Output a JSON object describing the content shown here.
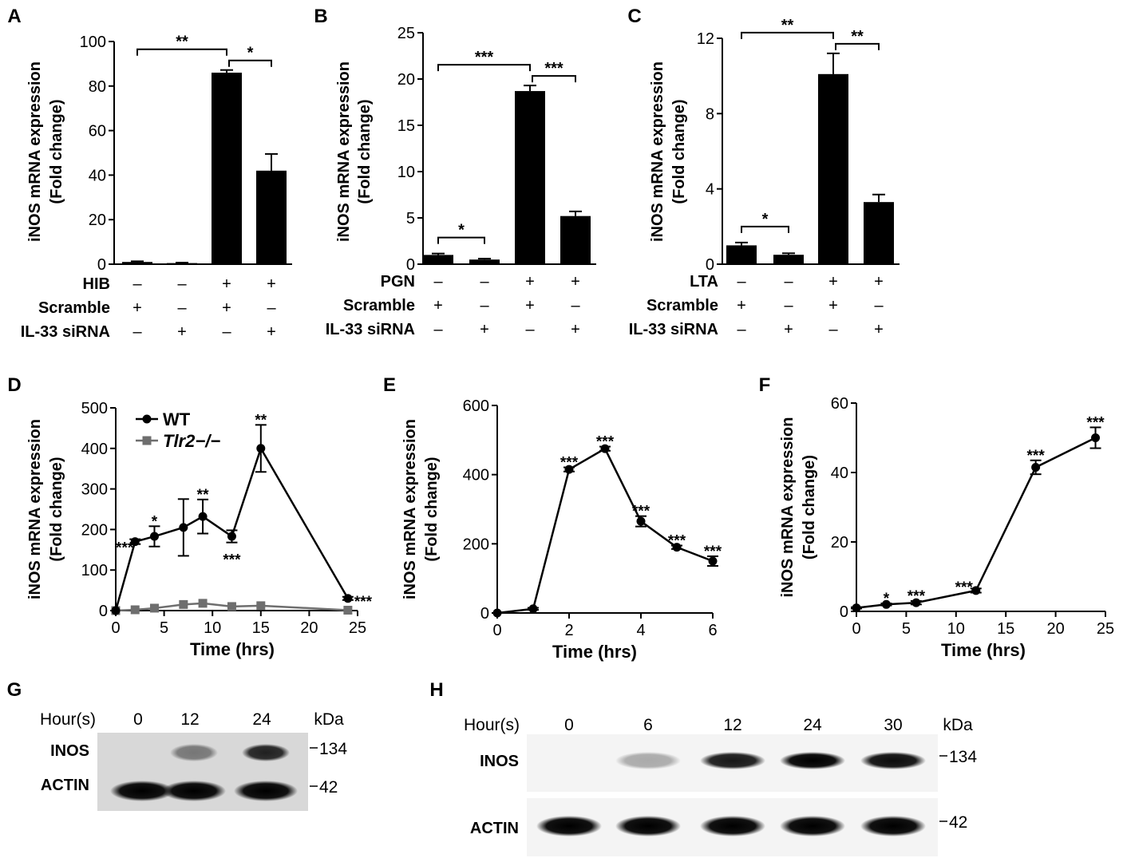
{
  "panel_letters": [
    "A",
    "B",
    "C",
    "D",
    "E",
    "F",
    "G",
    "H"
  ],
  "chart_data": [
    {
      "type": "bar",
      "panel": "A",
      "ylabel": [
        "iNOS mRNA expression",
        "(Fold change)"
      ],
      "ylim": [
        0,
        100
      ],
      "yticks": [
        0,
        20,
        40,
        60,
        80,
        100
      ],
      "values": [
        1,
        0.5,
        86,
        42
      ],
      "errors": [
        0.3,
        0.2,
        1.2,
        7.5
      ],
      "treatments": [
        {
          "label": "HIB",
          "signs": [
            "–",
            "–",
            "+",
            "+"
          ]
        },
        {
          "label": "Scramble",
          "signs": [
            "+",
            "–",
            "+",
            "–"
          ]
        },
        {
          "label": "IL-33 siRNA",
          "signs": [
            "–",
            "+",
            "–",
            "+"
          ]
        }
      ],
      "significance": [
        {
          "from": 0,
          "to": 2,
          "label": "**"
        },
        {
          "from": 2,
          "to": 3,
          "label": "*"
        }
      ]
    },
    {
      "type": "bar",
      "panel": "B",
      "ylabel": [
        "iNOS mRNA expression",
        "(Fold change)"
      ],
      "ylim": [
        0,
        25
      ],
      "yticks": [
        0,
        5,
        10,
        15,
        20,
        25
      ],
      "values": [
        1,
        0.5,
        18.7,
        5.2
      ],
      "errors": [
        0.15,
        0.1,
        0.6,
        0.5
      ],
      "treatments": [
        {
          "label": "PGN",
          "signs": [
            "–",
            "–",
            "+",
            "+"
          ]
        },
        {
          "label": "Scramble",
          "signs": [
            "+",
            "–",
            "+",
            "–"
          ]
        },
        {
          "label": "IL-33 siRNA",
          "signs": [
            "–",
            "+",
            "–",
            "+"
          ]
        }
      ],
      "significance": [
        {
          "from": 0,
          "to": 1,
          "label": "*"
        },
        {
          "from": 0,
          "to": 2,
          "label": "***"
        },
        {
          "from": 2,
          "to": 3,
          "label": "***"
        }
      ]
    },
    {
      "type": "bar",
      "panel": "C",
      "ylabel": [
        "iNOS mRNA expression",
        "(Fold change)"
      ],
      "ylim": [
        0,
        12
      ],
      "yticks": [
        0,
        4,
        8,
        12
      ],
      "values": [
        1,
        0.5,
        10.1,
        3.3
      ],
      "errors": [
        0.15,
        0.08,
        1.1,
        0.4
      ],
      "treatments": [
        {
          "label": "LTA",
          "signs": [
            "–",
            "–",
            "+",
            "+"
          ]
        },
        {
          "label": "Scramble",
          "signs": [
            "+",
            "–",
            "+",
            "–"
          ]
        },
        {
          "label": "IL-33 siRNA",
          "signs": [
            "–",
            "+",
            "–",
            "+"
          ]
        }
      ],
      "significance": [
        {
          "from": 0,
          "to": 1,
          "label": "*"
        },
        {
          "from": 0,
          "to": 2,
          "label": "**"
        },
        {
          "from": 2,
          "to": 3,
          "label": "**"
        }
      ]
    },
    {
      "type": "line",
      "panel": "D",
      "xlabel": "Time (hrs)",
      "ylabel": [
        "iNOS mRNA expression",
        "(Fold change)"
      ],
      "xlim": [
        0,
        25
      ],
      "ylim": [
        0,
        500
      ],
      "xticks": [
        0,
        5,
        10,
        15,
        20,
        25
      ],
      "yticks": [
        0,
        100,
        200,
        300,
        400,
        500
      ],
      "legend": "top-left",
      "series": [
        {
          "name": "WT",
          "color": "#000000",
          "marker": "circle",
          "x": [
            0,
            2,
            4,
            7,
            9,
            12,
            15,
            24
          ],
          "y": [
            0,
            170,
            183,
            205,
            232,
            183,
            400,
            30
          ],
          "err": [
            0,
            6,
            25,
            70,
            42,
            15,
            58,
            4
          ],
          "sig": [
            "",
            "***",
            "*",
            "",
            "**",
            "***",
            "**",
            "***"
          ],
          "sig_pos": [
            "",
            "above",
            "above",
            "",
            "above",
            "below",
            "above",
            "right"
          ]
        },
        {
          "name": "Tlr2−/−",
          "color": "#6e6e6e",
          "marker": "square",
          "x": [
            0,
            2,
            4,
            7,
            9,
            12,
            15,
            24
          ],
          "y": [
            0,
            2,
            6,
            15,
            18,
            10,
            12,
            1
          ],
          "err": [
            0,
            0,
            0,
            0,
            0,
            0,
            0,
            0
          ],
          "sig": [],
          "sig_pos": []
        }
      ]
    },
    {
      "type": "line",
      "panel": "E",
      "xlabel": "Time (hrs)",
      "ylabel": [
        "iNOS mRNA expression",
        "(Fold change)"
      ],
      "xlim": [
        0,
        6
      ],
      "ylim": [
        0,
        600
      ],
      "xticks": [
        0,
        2,
        4,
        6
      ],
      "yticks": [
        0,
        200,
        400,
        600
      ],
      "series": [
        {
          "name": "",
          "color": "#000000",
          "marker": "circle",
          "x": [
            0,
            1,
            2,
            3,
            4,
            5,
            6
          ],
          "y": [
            0,
            12,
            415,
            475,
            265,
            190,
            150
          ],
          "err": [
            0,
            3,
            6,
            6,
            15,
            5,
            14
          ],
          "sig": [
            "",
            "",
            "***",
            "***",
            "***",
            "***",
            "***"
          ],
          "sig_pos": [
            "",
            "",
            "above",
            "above",
            "above",
            "above",
            "above"
          ]
        }
      ]
    },
    {
      "type": "line",
      "panel": "F",
      "xlabel": "Time (hrs)",
      "ylabel": [
        "iNOS mRNA expression",
        "(Fold change)"
      ],
      "xlim": [
        0,
        25
      ],
      "ylim": [
        0,
        60
      ],
      "xticks": [
        0,
        5,
        10,
        15,
        20,
        25
      ],
      "yticks": [
        0,
        20,
        40,
        60
      ],
      "series": [
        {
          "name": "",
          "color": "#000000",
          "marker": "circle",
          "x": [
            0,
            3,
            6,
            12,
            18,
            24
          ],
          "y": [
            1,
            2,
            2.5,
            6,
            41.5,
            50
          ],
          "err": [
            0.2,
            0.3,
            0.5,
            0.6,
            2,
            3
          ],
          "sig": [
            "",
            "*",
            "***",
            "***",
            "***",
            "***"
          ],
          "sig_pos": [
            "",
            "above",
            "above",
            "left",
            "above",
            "above"
          ]
        }
      ]
    }
  ],
  "blots": [
    {
      "panel": "G",
      "header": "Hour(s)",
      "lanes": [
        "0",
        "12",
        "24"
      ],
      "unit": "kDa",
      "rows": [
        {
          "label": "INOS",
          "marker": "134",
          "intensity": [
            0,
            0.45,
            0.85
          ]
        },
        {
          "label": "ACTIN",
          "marker": "42",
          "intensity": [
            1,
            1,
            1
          ]
        }
      ]
    },
    {
      "panel": "H",
      "header": "Hour(s)",
      "lanes": [
        "0",
        "6",
        "12",
        "24",
        "30"
      ],
      "unit": "kDa",
      "rows": [
        {
          "label": "INOS",
          "marker": "134",
          "intensity": [
            0,
            0.3,
            0.9,
            1,
            0.95
          ]
        },
        {
          "label": "ACTIN",
          "marker": "42",
          "intensity": [
            1,
            1,
            1,
            1,
            1
          ]
        }
      ]
    }
  ]
}
